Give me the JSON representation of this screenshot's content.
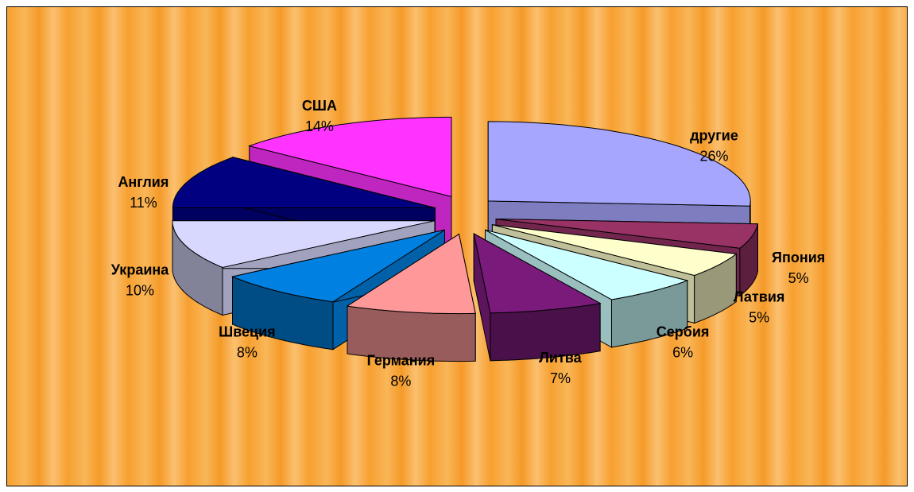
{
  "chart_data": {
    "type": "pie3d",
    "categories": [
      "другие",
      "Япония",
      "Латвия",
      "Сербия",
      "Литва",
      "Германия",
      "Швеция",
      "Украина",
      "Англия",
      "США"
    ],
    "values": [
      26,
      5,
      5,
      6,
      7,
      8,
      8,
      10,
      11,
      14
    ],
    "value_labels": [
      "26%",
      "5%",
      "5%",
      "6%",
      "7%",
      "8%",
      "8%",
      "10%",
      "11%",
      "14%"
    ],
    "colors": [
      "#a6a6ff",
      "#993366",
      "#ffffcc",
      "#ccffff",
      "#7a1a7a",
      "#ff9999",
      "#0080e0",
      "#d8d8ff",
      "#000080",
      "#ff33ff"
    ]
  }
}
